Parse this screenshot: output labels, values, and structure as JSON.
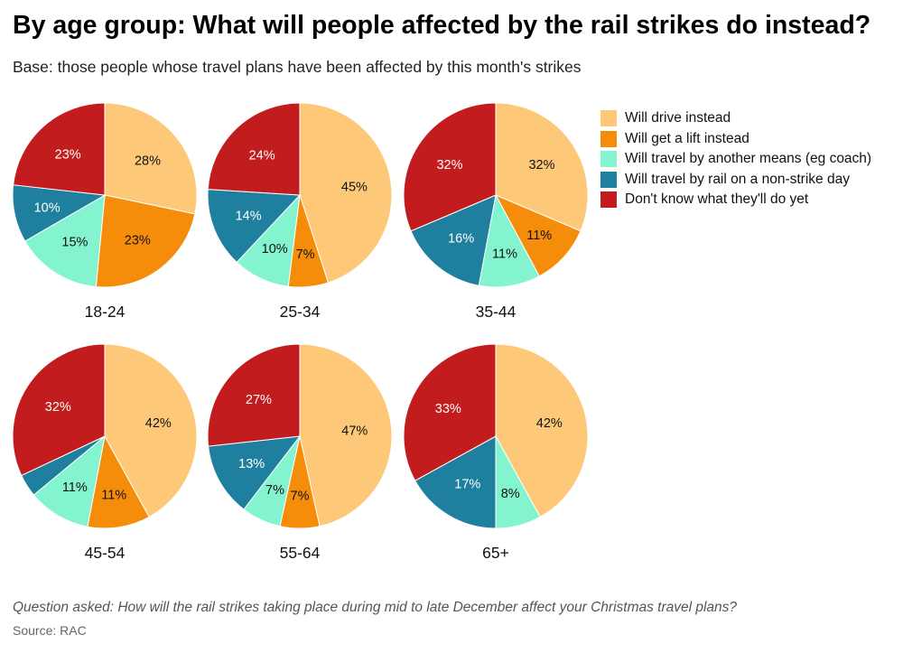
{
  "title": "By age group: What will people affected by the rail strikes do instead?",
  "subtitle": "Base: those people whose travel plans have been affected by this month's strikes",
  "footnote": "Question asked: How will the rail strikes taking place during mid to late December affect your Christmas travel plans?",
  "source": "Source: RAC",
  "colors": {
    "drive": "#FDC979",
    "lift": "#F58D0A",
    "other_means": "#84F4D0",
    "rail_non_strike": "#1F7F9E",
    "dont_know": "#C31C1E"
  },
  "legend": [
    {
      "key": "drive",
      "label": "Will drive instead"
    },
    {
      "key": "lift",
      "label": "Will get a lift instead"
    },
    {
      "key": "other_means",
      "label": "Will travel by another means (eg coach)"
    },
    {
      "key": "rail_non_strike",
      "label": "Will travel by rail on a non-strike day"
    },
    {
      "key": "dont_know",
      "label": "Don't know what they'll do yet"
    }
  ],
  "chart_data": [
    {
      "type": "pie",
      "title": "18-24",
      "unit": "%",
      "slices": [
        {
          "key": "drive",
          "value": 28,
          "label": "28%"
        },
        {
          "key": "lift",
          "value": 23,
          "label": "23%"
        },
        {
          "key": "other_means",
          "value": 15,
          "label": "15%"
        },
        {
          "key": "rail_non_strike",
          "value": 10,
          "label": "10%"
        },
        {
          "key": "dont_know",
          "value": 23,
          "label": "23%"
        }
      ]
    },
    {
      "type": "pie",
      "title": "25-34",
      "unit": "%",
      "slices": [
        {
          "key": "drive",
          "value": 45,
          "label": "45%"
        },
        {
          "key": "lift",
          "value": 7,
          "label": "7%"
        },
        {
          "key": "other_means",
          "value": 10,
          "label": "10%"
        },
        {
          "key": "rail_non_strike",
          "value": 14,
          "label": "14%"
        },
        {
          "key": "dont_know",
          "value": 24,
          "label": "24%"
        }
      ]
    },
    {
      "type": "pie",
      "title": "35-44",
      "unit": "%",
      "slices": [
        {
          "key": "drive",
          "value": 32,
          "label": "32%"
        },
        {
          "key": "lift",
          "value": 11,
          "label": "11%"
        },
        {
          "key": "other_means",
          "value": 11,
          "label": "11%"
        },
        {
          "key": "rail_non_strike",
          "value": 16,
          "label": "16%"
        },
        {
          "key": "dont_know",
          "value": 32,
          "label": "32%"
        }
      ]
    },
    {
      "type": "pie",
      "title": "45-54",
      "unit": "%",
      "slices": [
        {
          "key": "drive",
          "value": 42,
          "label": "42%"
        },
        {
          "key": "lift",
          "value": 11,
          "label": "11%"
        },
        {
          "key": "other_means",
          "value": 11,
          "label": "11%"
        },
        {
          "key": "rail_non_strike",
          "value": 4,
          "label": ""
        },
        {
          "key": "dont_know",
          "value": 32,
          "label": "32%"
        }
      ]
    },
    {
      "type": "pie",
      "title": "55-64",
      "unit": "%",
      "slices": [
        {
          "key": "drive",
          "value": 47,
          "label": "47%"
        },
        {
          "key": "lift",
          "value": 7,
          "label": "7%"
        },
        {
          "key": "other_means",
          "value": 7,
          "label": "7%"
        },
        {
          "key": "rail_non_strike",
          "value": 13,
          "label": "13%"
        },
        {
          "key": "dont_know",
          "value": 27,
          "label": "27%"
        }
      ]
    },
    {
      "type": "pie",
      "title": "65+",
      "unit": "%",
      "slices": [
        {
          "key": "drive",
          "value": 42,
          "label": "42%"
        },
        {
          "key": "lift",
          "value": 0,
          "label": ""
        },
        {
          "key": "other_means",
          "value": 8,
          "label": "8%"
        },
        {
          "key": "rail_non_strike",
          "value": 17,
          "label": "17%"
        },
        {
          "key": "dont_know",
          "value": 33,
          "label": "33%"
        }
      ]
    }
  ]
}
